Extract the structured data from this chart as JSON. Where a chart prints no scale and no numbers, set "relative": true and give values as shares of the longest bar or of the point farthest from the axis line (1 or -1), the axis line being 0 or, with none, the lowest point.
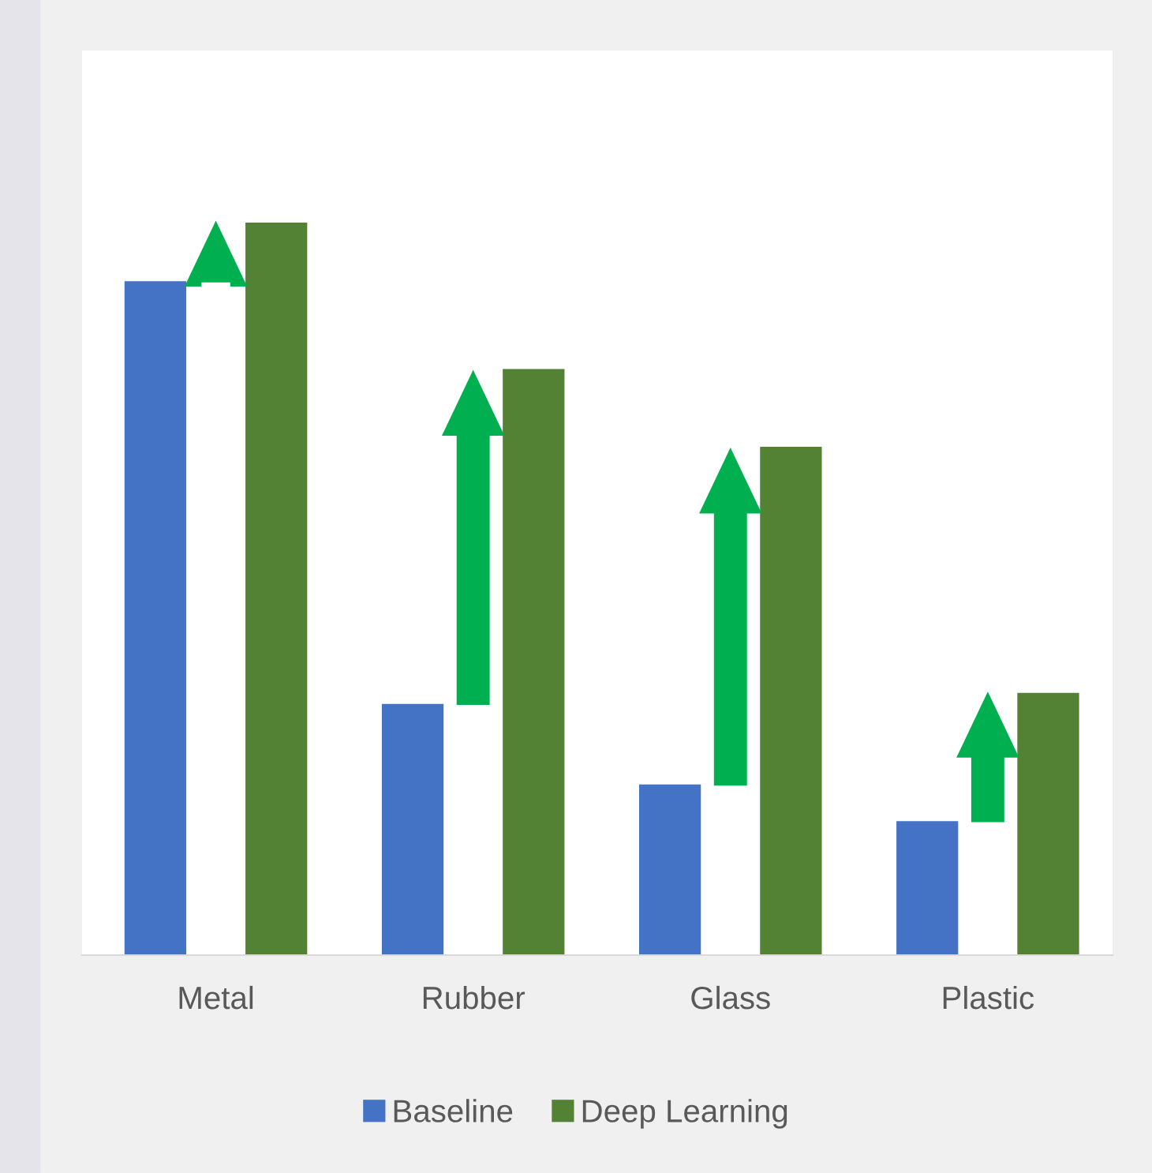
{
  "chart_data": {
    "type": "bar",
    "relative": true,
    "categories": [
      "Metal",
      "Rubber",
      "Glass",
      "Plastic"
    ],
    "series": [
      {
        "name": "Baseline",
        "color": "#4472c4",
        "values": [
          0.92,
          0.343,
          0.233,
          0.183
        ]
      },
      {
        "name": "Deep Learning",
        "color": "#548235",
        "values": [
          1,
          0.8,
          0.694,
          0.358
        ]
      }
    ],
    "legend": "bottom",
    "grid": false
  }
}
